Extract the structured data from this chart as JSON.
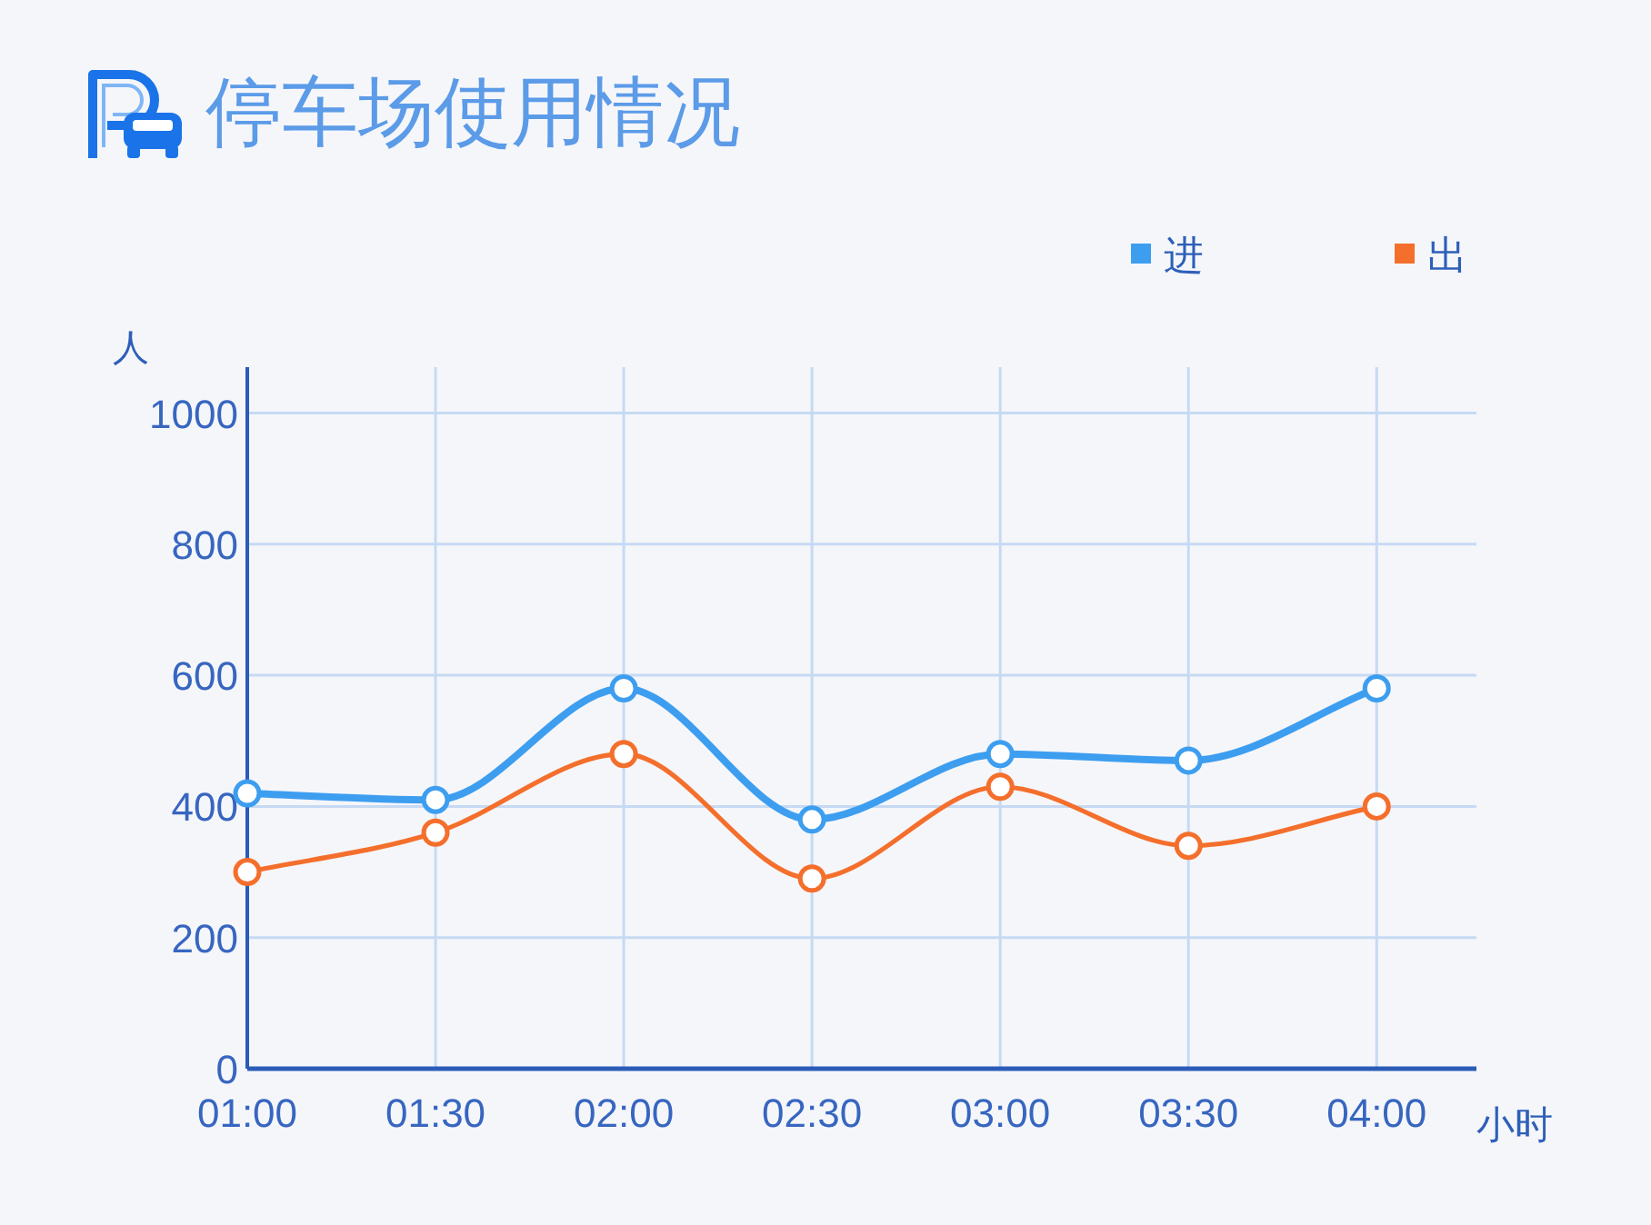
{
  "chart_data": {
    "type": "line",
    "title": "停车场使用情况",
    "xlabel": "小时",
    "ylabel": "人",
    "categories": [
      "01:00",
      "01:30",
      "02:00",
      "02:30",
      "03:00",
      "03:30",
      "04:00"
    ],
    "series": [
      {
        "name": "进",
        "color": "#3d9ef0",
        "values": [
          420,
          410,
          580,
          380,
          480,
          470,
          580
        ]
      },
      {
        "name": "出",
        "color": "#f46f2c",
        "values": [
          300,
          360,
          480,
          290,
          430,
          340,
          400
        ]
      }
    ],
    "ylim": [
      0,
      1070
    ],
    "yticks": [
      0,
      200,
      400,
      600,
      800,
      1000
    ],
    "grid": true,
    "legend": "top right",
    "marker": "circle",
    "line_style": "solid"
  }
}
